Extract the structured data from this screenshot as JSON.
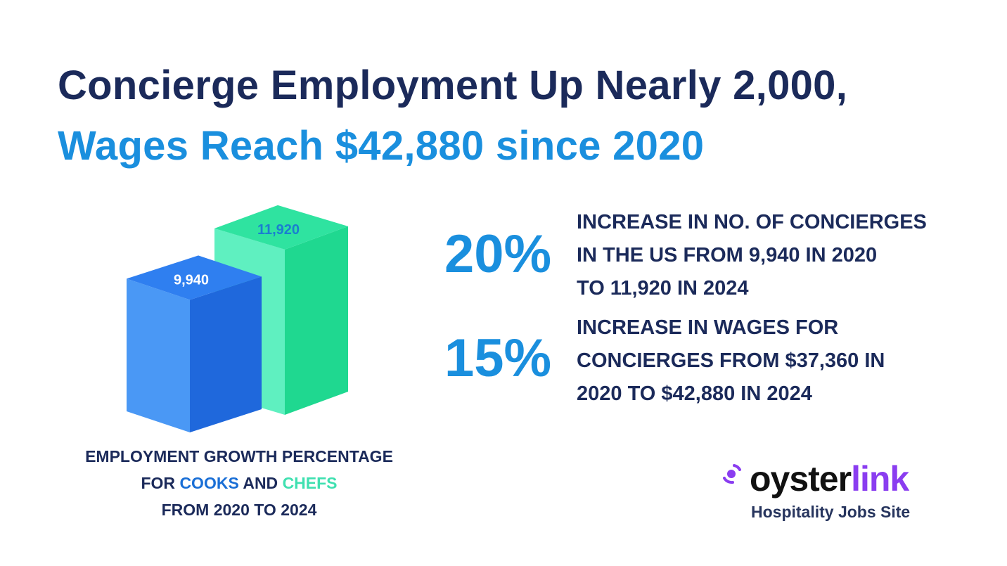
{
  "title": {
    "line1": "Concierge Employment Up Nearly 2,000,",
    "line2": "Wages Reach $42,880 since 2020"
  },
  "chart_data": {
    "type": "bar",
    "title": "",
    "categories": [
      "2020",
      "2024"
    ],
    "values": [
      9940,
      11920
    ],
    "labels": [
      "9,940",
      "11,920"
    ],
    "colors": [
      "#2f7ff0",
      "#2fe3a0"
    ],
    "caption": {
      "part1": "EMPLOYMENT GROWTH PERCENTAGE",
      "part2": "FOR",
      "cooks": "COOKS",
      "and": "AND",
      "chefs": "CHEFS",
      "part3": "FROM 2020 TO 2024"
    }
  },
  "stats": [
    {
      "value": "20%",
      "lines": [
        "INCREASE IN NO. OF CONCIERGES",
        "IN THE US FROM 9,940 IN 2020",
        "TO 11,920 IN 2024"
      ]
    },
    {
      "value": "15%",
      "lines": [
        "INCREASE IN WAGES FOR",
        "CONCIERGES FROM $37,360 IN",
        "2020 TO $42,880 IN 2024"
      ]
    }
  ],
  "logo": {
    "word1": "oyster",
    "word2": "link",
    "tagline": "Hospitality Jobs Site"
  }
}
